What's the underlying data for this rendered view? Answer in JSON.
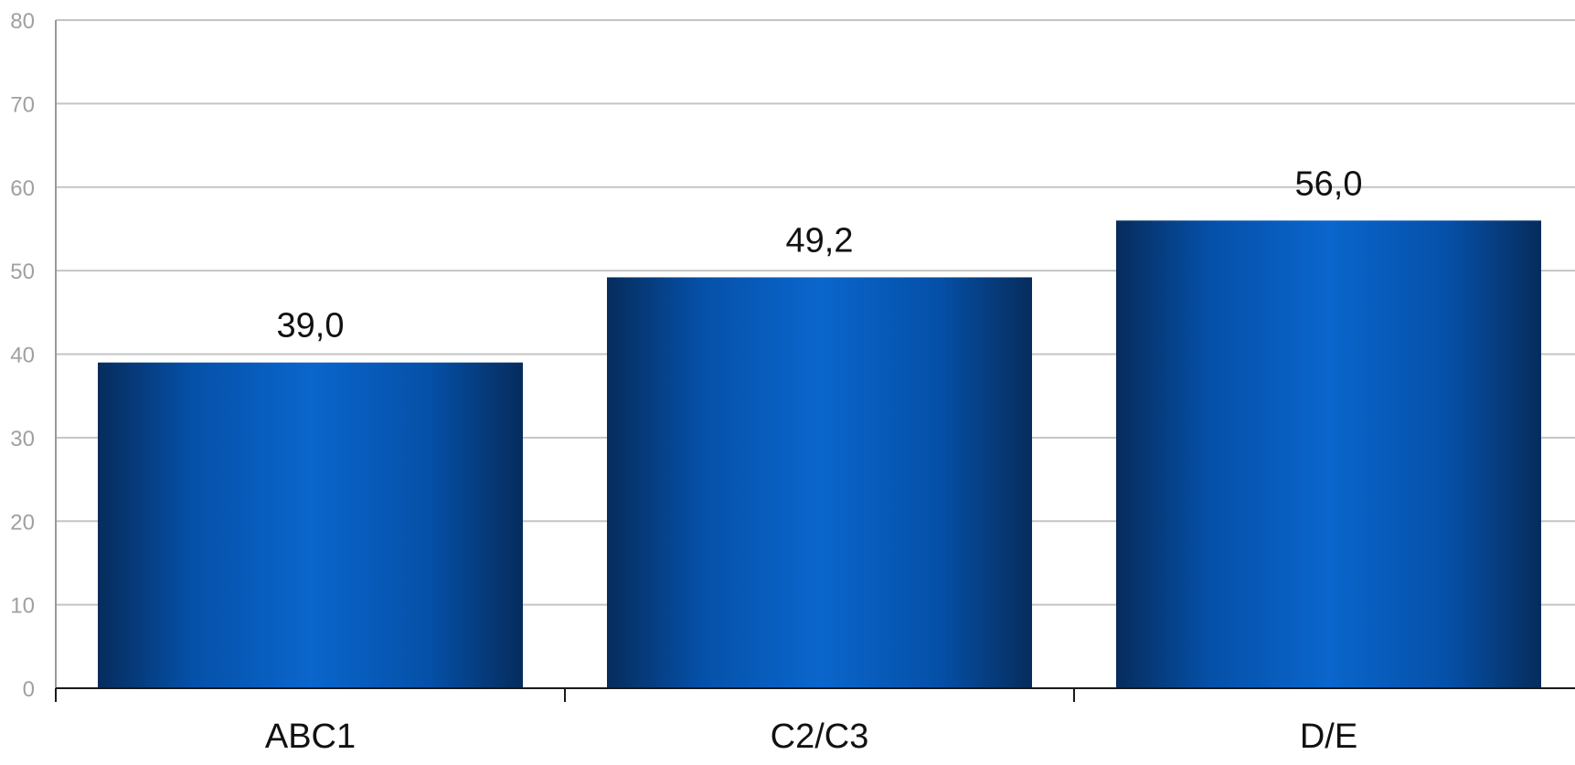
{
  "chart_data": {
    "type": "bar",
    "title": "",
    "xlabel": "",
    "ylabel": "",
    "categories": [
      "ABC1",
      "C2/C3",
      "D/E"
    ],
    "series": [
      {
        "values": [
          39.0,
          49.2,
          56.0
        ],
        "labels": [
          "39,0",
          "49,2",
          "56,0"
        ]
      }
    ],
    "ylim": [
      0,
      80
    ],
    "yticks": [
      0,
      10,
      20,
      30,
      40,
      50,
      60,
      70,
      80
    ],
    "grid": true,
    "legend": "none",
    "colors": {
      "bar_edge": "#062c5c",
      "bar_center": "#0a66cc",
      "grid": "#c4c4c4",
      "tick_text": "#a0a0a0"
    }
  }
}
